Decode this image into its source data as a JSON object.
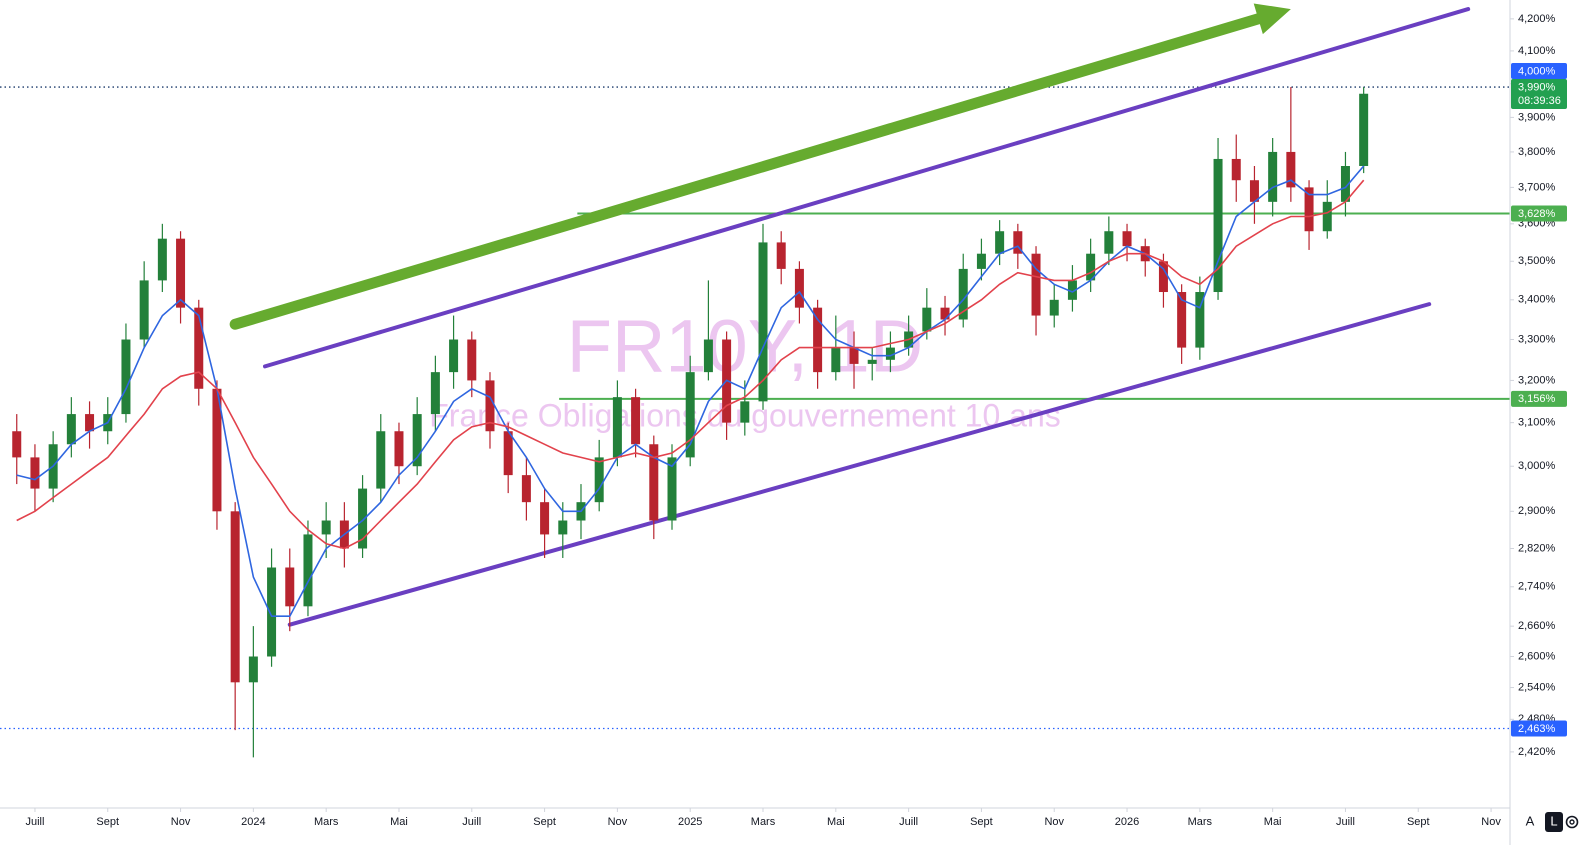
{
  "chart_data": {
    "type": "candlestick",
    "log_scale": true,
    "grid": false,
    "watermark": {
      "title": "FR10Y, 1D",
      "subtitle": "France Obligations du gouvernement 10 ans",
      "color": "#ecc6f0"
    },
    "xlim": [
      -0.96,
      40.52
    ],
    "xticks": [
      {
        "value": 0,
        "label": "Juill"
      },
      {
        "value": 2,
        "label": "Sept"
      },
      {
        "value": 4,
        "label": "Nov"
      },
      {
        "value": 6,
        "label": "2024"
      },
      {
        "value": 8,
        "label": "Mars"
      },
      {
        "value": 10,
        "label": "Mai"
      },
      {
        "value": 12,
        "label": "Juill"
      },
      {
        "value": 14,
        "label": "Sept"
      },
      {
        "value": 16,
        "label": "Nov"
      },
      {
        "value": 18,
        "label": "2025"
      },
      {
        "value": 20,
        "label": "Mars"
      },
      {
        "value": 22,
        "label": "Mai"
      },
      {
        "value": 24,
        "label": "Juill"
      },
      {
        "value": 26,
        "label": "Sept"
      },
      {
        "value": 28,
        "label": "Nov"
      },
      {
        "value": 30,
        "label": "2026"
      },
      {
        "value": 32,
        "label": "Mars"
      },
      {
        "value": 34,
        "label": "Mai"
      },
      {
        "value": 36,
        "label": "Juill"
      },
      {
        "value": 38,
        "label": "Sept"
      },
      {
        "value": 40,
        "label": "Nov"
      }
    ],
    "ylim": [
      2.32,
      4.26
    ],
    "yticks": [
      {
        "value": 4.2,
        "label": "4,200%"
      },
      {
        "value": 4.1,
        "label": "4,100%"
      },
      {
        "value": 4.0,
        "label": "4,000%"
      },
      {
        "value": 3.9,
        "label": "3,900%"
      },
      {
        "value": 3.8,
        "label": "3,800%"
      },
      {
        "value": 3.7,
        "label": "3,700%"
      },
      {
        "value": 3.6,
        "label": "3,600%"
      },
      {
        "value": 3.5,
        "label": "3,500%"
      },
      {
        "value": 3.4,
        "label": "3,400%"
      },
      {
        "value": 3.3,
        "label": "3,300%"
      },
      {
        "value": 3.2,
        "label": "3,200%"
      },
      {
        "value": 3.1,
        "label": "3,100%"
      },
      {
        "value": 3.0,
        "label": "3,000%"
      },
      {
        "value": 2.9,
        "label": "2,900%"
      },
      {
        "value": 2.82,
        "label": "2,820%"
      },
      {
        "value": 2.74,
        "label": "2,740%"
      },
      {
        "value": 2.66,
        "label": "2,660%"
      },
      {
        "value": 2.6,
        "label": "2,600%"
      },
      {
        "value": 2.54,
        "label": "2,540%"
      },
      {
        "value": 2.48,
        "label": "2,480%"
      },
      {
        "value": 2.42,
        "label": "2,420%"
      }
    ],
    "up_color": "#23803a",
    "down_color": "#b8242f",
    "x": [
      -0.5,
      0,
      0.5,
      1,
      1.5,
      2,
      2.5,
      3,
      3.5,
      4,
      4.5,
      5,
      5.5,
      6,
      6.5,
      7,
      7.5,
      8,
      8.5,
      9,
      9.5,
      10,
      10.5,
      11,
      11.5,
      12,
      12.5,
      13,
      13.5,
      14,
      14.5,
      15,
      15.5,
      16,
      16.5,
      17,
      17.5,
      18,
      18.5,
      19,
      19.5,
      20,
      20.5,
      21,
      21.5,
      22,
      22.5,
      23,
      23.5,
      24,
      24.5,
      25,
      25.5,
      26,
      26.5,
      27,
      27.5,
      28,
      28.5,
      29,
      29.5,
      30,
      30.5,
      31,
      31.5,
      32,
      32.5,
      33,
      33.5,
      34,
      34.5,
      35,
      35.5,
      36,
      36.5
    ],
    "open": [
      3.08,
      3.02,
      2.95,
      3.05,
      3.12,
      3.08,
      3.12,
      3.3,
      3.45,
      3.56,
      3.38,
      3.18,
      2.9,
      2.55,
      2.6,
      2.78,
      2.7,
      2.85,
      2.88,
      2.82,
      2.95,
      3.08,
      3.0,
      3.12,
      3.22,
      3.3,
      3.2,
      3.08,
      2.98,
      2.92,
      2.85,
      2.88,
      2.92,
      3.02,
      3.16,
      3.05,
      2.88,
      3.02,
      3.22,
      3.3,
      3.1,
      3.15,
      3.55,
      3.48,
      3.38,
      3.22,
      3.28,
      3.24,
      3.25,
      3.28,
      3.32,
      3.38,
      3.35,
      3.48,
      3.52,
      3.58,
      3.52,
      3.36,
      3.4,
      3.45,
      3.52,
      3.58,
      3.54,
      3.5,
      3.42,
      3.28,
      3.42,
      3.78,
      3.72,
      3.66,
      3.8,
      3.7,
      3.58,
      3.66,
      3.76
    ],
    "high": [
      3.12,
      3.05,
      3.08,
      3.16,
      3.15,
      3.16,
      3.34,
      3.5,
      3.6,
      3.58,
      3.4,
      3.2,
      2.92,
      2.66,
      2.82,
      2.82,
      2.88,
      2.92,
      2.92,
      2.98,
      3.12,
      3.1,
      3.16,
      3.26,
      3.36,
      3.32,
      3.22,
      3.1,
      3.02,
      2.95,
      2.92,
      2.96,
      3.06,
      3.2,
      3.18,
      3.07,
      3.05,
      3.26,
      3.45,
      3.32,
      3.2,
      3.6,
      3.58,
      3.5,
      3.4,
      3.36,
      3.32,
      3.28,
      3.32,
      3.36,
      3.43,
      3.41,
      3.52,
      3.56,
      3.61,
      3.6,
      3.54,
      3.44,
      3.49,
      3.56,
      3.62,
      3.6,
      3.56,
      3.52,
      3.44,
      3.46,
      3.84,
      3.85,
      3.76,
      3.84,
      3.99,
      3.72,
      3.72,
      3.8,
      3.99
    ],
    "low": [
      2.96,
      2.9,
      2.92,
      3.02,
      3.04,
      3.05,
      3.1,
      3.28,
      3.42,
      3.34,
      3.14,
      2.86,
      2.46,
      2.41,
      2.58,
      2.65,
      2.68,
      2.8,
      2.78,
      2.8,
      2.92,
      2.96,
      2.98,
      3.08,
      3.18,
      3.16,
      3.04,
      2.94,
      2.88,
      2.8,
      2.8,
      2.84,
      2.9,
      3.0,
      3.02,
      2.84,
      2.86,
      3.0,
      3.2,
      3.06,
      3.07,
      3.13,
      3.44,
      3.34,
      3.18,
      3.2,
      3.18,
      3.2,
      3.22,
      3.26,
      3.3,
      3.31,
      3.33,
      3.45,
      3.49,
      3.48,
      3.31,
      3.33,
      3.37,
      3.42,
      3.49,
      3.5,
      3.46,
      3.38,
      3.24,
      3.25,
      3.4,
      3.66,
      3.6,
      3.62,
      3.66,
      3.53,
      3.56,
      3.62,
      3.74
    ],
    "close": [
      3.02,
      2.95,
      3.05,
      3.12,
      3.08,
      3.12,
      3.3,
      3.45,
      3.56,
      3.38,
      3.18,
      2.9,
      2.55,
      2.6,
      2.78,
      2.7,
      2.85,
      2.88,
      2.82,
      2.95,
      3.08,
      3.0,
      3.12,
      3.22,
      3.3,
      3.2,
      3.08,
      2.98,
      2.92,
      2.85,
      2.88,
      2.92,
      3.02,
      3.16,
      3.05,
      2.88,
      3.02,
      3.22,
      3.3,
      3.1,
      3.15,
      3.55,
      3.48,
      3.38,
      3.22,
      3.28,
      3.24,
      3.25,
      3.28,
      3.32,
      3.38,
      3.35,
      3.48,
      3.52,
      3.58,
      3.52,
      3.36,
      3.4,
      3.45,
      3.52,
      3.58,
      3.54,
      3.5,
      3.42,
      3.28,
      3.42,
      3.78,
      3.72,
      3.66,
      3.8,
      3.7,
      3.58,
      3.66,
      3.76,
      3.97
    ],
    "moving_averages": [
      {
        "color": "#2f66e0",
        "values": [
          2.98,
          2.97,
          3.0,
          3.05,
          3.08,
          3.1,
          3.18,
          3.28,
          3.36,
          3.4,
          3.36,
          3.18,
          2.95,
          2.76,
          2.68,
          2.68,
          2.75,
          2.82,
          2.85,
          2.88,
          2.92,
          2.98,
          3.02,
          3.08,
          3.15,
          3.18,
          3.16,
          3.08,
          3.02,
          2.95,
          2.9,
          2.9,
          2.95,
          3.02,
          3.05,
          3.02,
          3.0,
          3.05,
          3.15,
          3.2,
          3.18,
          3.28,
          3.38,
          3.42,
          3.35,
          3.3,
          3.28,
          3.26,
          3.26,
          3.28,
          3.32,
          3.35,
          3.4,
          3.46,
          3.52,
          3.54,
          3.48,
          3.44,
          3.42,
          3.45,
          3.5,
          3.54,
          3.52,
          3.48,
          3.4,
          3.38,
          3.5,
          3.62,
          3.66,
          3.7,
          3.72,
          3.68,
          3.68,
          3.7,
          3.76
        ]
      },
      {
        "color": "#e2424c",
        "values": [
          2.88,
          2.9,
          2.93,
          2.96,
          2.99,
          3.02,
          3.07,
          3.12,
          3.18,
          3.21,
          3.22,
          3.18,
          3.1,
          3.02,
          2.96,
          2.9,
          2.86,
          2.83,
          2.82,
          2.84,
          2.88,
          2.92,
          2.96,
          3.01,
          3.06,
          3.09,
          3.1,
          3.09,
          3.07,
          3.05,
          3.03,
          3.02,
          3.01,
          3.02,
          3.03,
          3.02,
          3.03,
          3.06,
          3.1,
          3.14,
          3.16,
          3.2,
          3.25,
          3.28,
          3.28,
          3.28,
          3.28,
          3.28,
          3.29,
          3.3,
          3.32,
          3.34,
          3.37,
          3.4,
          3.44,
          3.47,
          3.46,
          3.45,
          3.45,
          3.47,
          3.5,
          3.52,
          3.52,
          3.5,
          3.46,
          3.44,
          3.48,
          3.54,
          3.57,
          3.6,
          3.62,
          3.62,
          3.63,
          3.66,
          3.72
        ]
      }
    ],
    "trendlines": [
      {
        "color": "#6a3fc1",
        "x": [
          6.32,
          39.37
        ],
        "y": [
          3.234,
          4.231
        ]
      },
      {
        "color": "#6a3fc1",
        "x": [
          7.0,
          38.3
        ],
        "y": [
          2.663,
          3.389
        ]
      }
    ],
    "arrow": {
      "color": "#66ab2f",
      "x": [
        5.5,
        34.5
      ],
      "y": [
        3.338,
        4.231
      ]
    },
    "levels": [
      {
        "value": 3.628,
        "label": "3,628%",
        "color": "#4caf50",
        "x_from": 14.9,
        "style": "solid"
      },
      {
        "value": 3.156,
        "label": "3,156%",
        "color": "#4caf50",
        "x_from": 14.4,
        "style": "solid"
      },
      {
        "value": 2.463,
        "label": "2,463%",
        "color": "#2962ff",
        "style": "dotted"
      },
      {
        "value": 3.99,
        "label": "3,990%",
        "time": "08:39:36",
        "color": "#22a050",
        "line_color": "#1b3a6b",
        "style": "dotted"
      },
      {
        "value": 4.0,
        "label": "4,000%",
        "color": "#2962ff"
      }
    ],
    "controls": {
      "auto": "A",
      "log": "L"
    }
  }
}
